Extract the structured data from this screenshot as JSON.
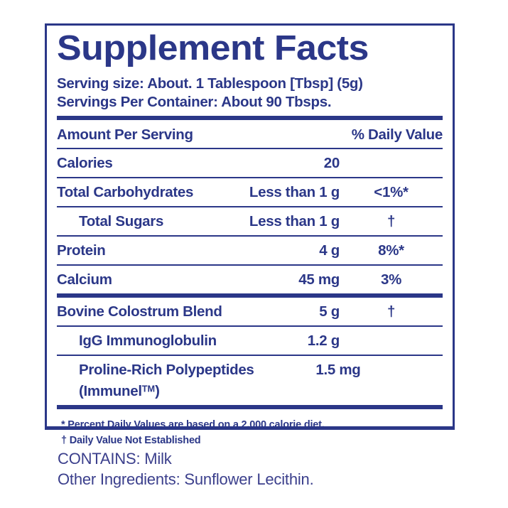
{
  "colors": {
    "navy": "#2b3788",
    "background": "#ffffff"
  },
  "panel": {
    "title": "Supplement Facts",
    "serving_size_line": "Serving size: About. 1 Tablespoon [Tbsp] (5g)",
    "servings_per_container_line": "Servings Per Container:  About 90 Tbsps.",
    "table": {
      "header": {
        "left": "Amount Per Serving",
        "right": "% Daily Value"
      },
      "rows": [
        {
          "name": "Calories",
          "amount": "20",
          "dv": ""
        },
        {
          "name": "Total Carbohydrates",
          "amount": "Less than 1 g",
          "dv": "<1%*"
        },
        {
          "name": "Total Sugars",
          "amount": "Less than 1 g",
          "dv": "†"
        },
        {
          "name": "Protein",
          "amount": "4 g",
          "dv": "8%*"
        },
        {
          "name": "Calcium",
          "amount": "45 mg",
          "dv": "3%"
        },
        {
          "name": "Bovine Colostrum Blend",
          "amount": "5 g",
          "dv": "†"
        },
        {
          "name": "IgG Immunoglobulin",
          "amount": "1.2 g",
          "dv": ""
        },
        {
          "name": "Proline-Rich Polypeptides",
          "name_line2_prefix": "(Immunel",
          "name_line2_tm": "TM",
          "name_line2_suffix": ")",
          "amount": "1.5 mg",
          "dv": ""
        }
      ]
    },
    "footnotes": [
      "* Percent Daily Values are based on a 2,000 calorie diet.",
      "† Daily Value Not Established"
    ]
  },
  "below_panel": {
    "contains_line": "CONTAINS: Milk",
    "other_ingredients_line": "Other Ingredients: Sunflower Lecithin."
  }
}
